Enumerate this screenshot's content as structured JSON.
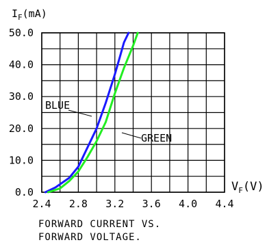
{
  "chart_data": {
    "type": "line",
    "title": "",
    "caption_lines": [
      "FORWARD CURRENT VS.",
      "FORWARD VOLTAGE."
    ],
    "ylabel_main": "I",
    "ylabel_sub": "F",
    "ylabel_unit": "(mA)",
    "xlabel_main": "V",
    "xlabel_sub": "F",
    "xlabel_unit": "(V)",
    "xlim": [
      2.4,
      4.4
    ],
    "ylim": [
      0,
      50
    ],
    "x_ticks": [
      "2.4",
      "2.8",
      "3.2",
      "3.6",
      "4.0",
      "4.4"
    ],
    "x_tick_values": [
      2.4,
      2.8,
      3.2,
      3.6,
      4.0,
      4.4
    ],
    "y_ticks": [
      "0.0",
      "10.0",
      "20.0",
      "30.0",
      "40.0",
      "50.0"
    ],
    "y_tick_values": [
      0,
      10,
      20,
      30,
      40,
      50
    ],
    "x_minor_step": 0.2,
    "y_minor_step": 5,
    "grid": true,
    "series": [
      {
        "name": "BLUE",
        "color": "#1a1aff",
        "x": [
          2.44,
          2.55,
          2.7,
          2.8,
          2.9,
          3.0,
          3.1,
          3.2,
          3.25,
          3.3,
          3.35
        ],
        "y": [
          0,
          1.5,
          4.5,
          8,
          14,
          20,
          28,
          37,
          42,
          47,
          50
        ]
      },
      {
        "name": "GREEN",
        "color": "#22ee22",
        "x": [
          2.47,
          2.6,
          2.7,
          2.8,
          2.9,
          3.0,
          3.1,
          3.2,
          3.3,
          3.4,
          3.45
        ],
        "y": [
          0,
          1.2,
          3.5,
          6.5,
          11,
          16,
          22,
          31,
          39,
          46,
          50
        ]
      }
    ]
  }
}
